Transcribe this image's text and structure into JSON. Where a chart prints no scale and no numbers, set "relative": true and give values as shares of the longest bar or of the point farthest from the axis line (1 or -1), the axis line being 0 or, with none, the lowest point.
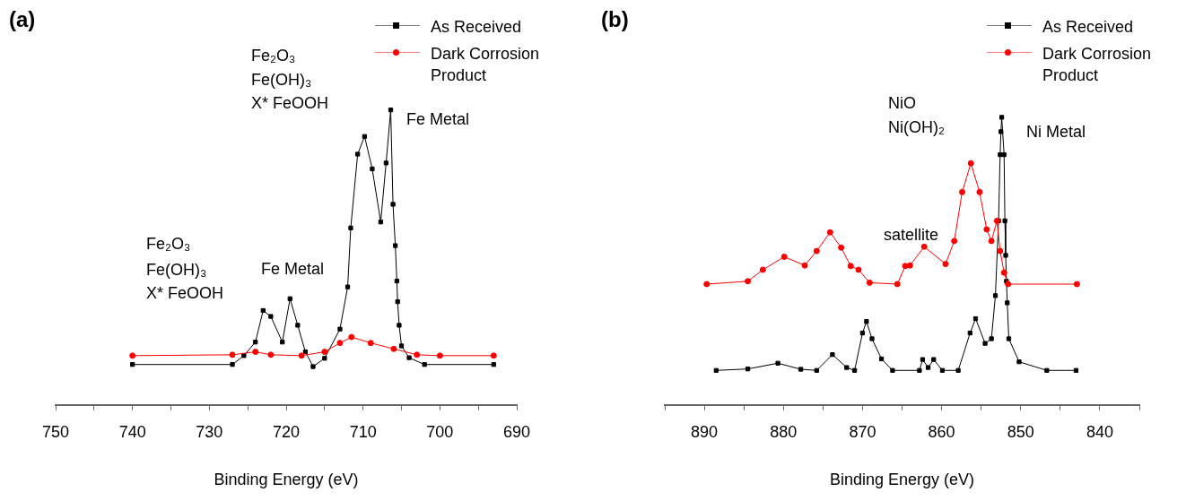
{
  "chart_data": [
    {
      "type": "line",
      "title": "(a)",
      "xlabel": "Binding Energy (eV)",
      "relative": true,
      "legend": "top right",
      "xlim": [
        750,
        690
      ],
      "xticks": [
        750,
        {
          "value": 745,
          "label": null
        },
        740,
        {
          "value": 735,
          "label": null
        },
        730,
        {
          "value": 725,
          "label": null
        },
        720,
        {
          "value": 715,
          "label": null
        },
        710,
        {
          "value": 705,
          "label": null
        },
        700,
        {
          "value": 695,
          "label": null
        },
        690
      ],
      "series": [
        {
          "name": "As Received",
          "color": "#000000",
          "marker": "square",
          "x": [
            740,
            727,
            725.5,
            724,
            723,
            722,
            720.5,
            719.5,
            718.5,
            717.5,
            716.5,
            715,
            713,
            712,
            711.6,
            710.7,
            709.8,
            708.8,
            707.7,
            707,
            706.4,
            706.1,
            705.8,
            705.6,
            705.5,
            705.3,
            705,
            704,
            702,
            693
          ],
          "values": [
            0.137,
            0.137,
            0.167,
            0.213,
            0.32,
            0.3,
            0.213,
            0.36,
            0.27,
            0.18,
            0.13,
            0.158,
            0.257,
            0.4,
            0.6,
            0.85,
            0.91,
            0.8,
            0.62,
            0.82,
            1.0,
            0.68,
            0.54,
            0.42,
            0.35,
            0.27,
            0.2,
            0.16,
            0.137,
            0.137
          ]
        },
        {
          "name": "Dark Corrosion Product",
          "color": "#ff0000",
          "marker": "circle",
          "x": [
            740,
            727,
            724,
            722,
            718,
            715,
            713,
            711.5,
            709,
            706,
            703,
            700,
            693
          ],
          "values": [
            0.167,
            0.17,
            0.18,
            0.17,
            0.167,
            0.18,
            0.21,
            0.23,
            0.21,
            0.19,
            0.17,
            0.167,
            0.167
          ]
        }
      ],
      "annotations": [
        "Fe₂O₃",
        "Fe(OH)₃",
        "X* FeOOH",
        "Fe Metal",
        "Fe₂O₃",
        "Fe(OH)₃",
        "X* FeOOH",
        "Fe Metal"
      ]
    },
    {
      "type": "line",
      "title": "(b)",
      "xlabel": "Binding Energy (eV)",
      "relative": true,
      "legend": "top right",
      "xlim": [
        895,
        835
      ],
      "xticks": [
        {
          "value": 895,
          "label": null
        },
        890,
        {
          "value": 885,
          "label": null
        },
        880,
        {
          "value": 875,
          "label": null
        },
        870,
        {
          "value": 865,
          "label": null
        },
        860,
        {
          "value": 855,
          "label": null
        },
        850,
        {
          "value": 845,
          "label": null
        },
        840,
        {
          "value": 835,
          "label": null
        }
      ],
      "series": [
        {
          "name": "As Received",
          "color": "#000000",
          "marker": "square",
          "x": [
            888.5,
            884.5,
            880.7,
            877.8,
            875.8,
            873.8,
            872,
            871,
            870,
            869.5,
            868.8,
            867.6,
            866.2,
            862.8,
            862.4,
            861.7,
            861,
            859.9,
            857.9,
            856.4,
            855.7,
            854.5,
            853.7,
            853.2,
            852.8,
            852.6,
            852.5,
            852.4,
            852.1,
            852,
            851.9,
            851.8,
            851.7,
            851.5,
            850.2,
            846.7,
            843
          ],
          "values": [
            0.12,
            0.125,
            0.145,
            0.124,
            0.12,
            0.175,
            0.13,
            0.12,
            0.25,
            0.29,
            0.23,
            0.16,
            0.12,
            0.12,
            0.158,
            0.13,
            0.158,
            0.12,
            0.12,
            0.25,
            0.3,
            0.214,
            0.23,
            0.38,
            0.64,
            0.87,
            0.95,
            1.0,
            0.87,
            0.64,
            0.52,
            0.43,
            0.355,
            0.23,
            0.15,
            0.12,
            0.12
          ]
        },
        {
          "name": "Dark Corrosion Product",
          "color": "#ff0000",
          "marker": "circle",
          "x": [
            889.7,
            884.5,
            882.6,
            879.9,
            877.3,
            875.8,
            874.1,
            872.7,
            871.5,
            870.5,
            869.1,
            865.6,
            864.6,
            864,
            862.2,
            859.5,
            858.4,
            857.4,
            856.3,
            855.2,
            854.3,
            853.7,
            853,
            852.6,
            852.1,
            851.6,
            842.9
          ],
          "values": [
            0.42,
            0.43,
            0.47,
            0.515,
            0.485,
            0.535,
            0.6,
            0.547,
            0.483,
            0.47,
            0.425,
            0.42,
            0.483,
            0.485,
            0.55,
            0.49,
            0.57,
            0.74,
            0.84,
            0.74,
            0.61,
            0.57,
            0.64,
            0.535,
            0.46,
            0.42,
            0.42
          ]
        }
      ],
      "annotations": [
        "NiO",
        "Ni(OH)₂",
        "Ni Metal",
        "satellite"
      ]
    }
  ]
}
